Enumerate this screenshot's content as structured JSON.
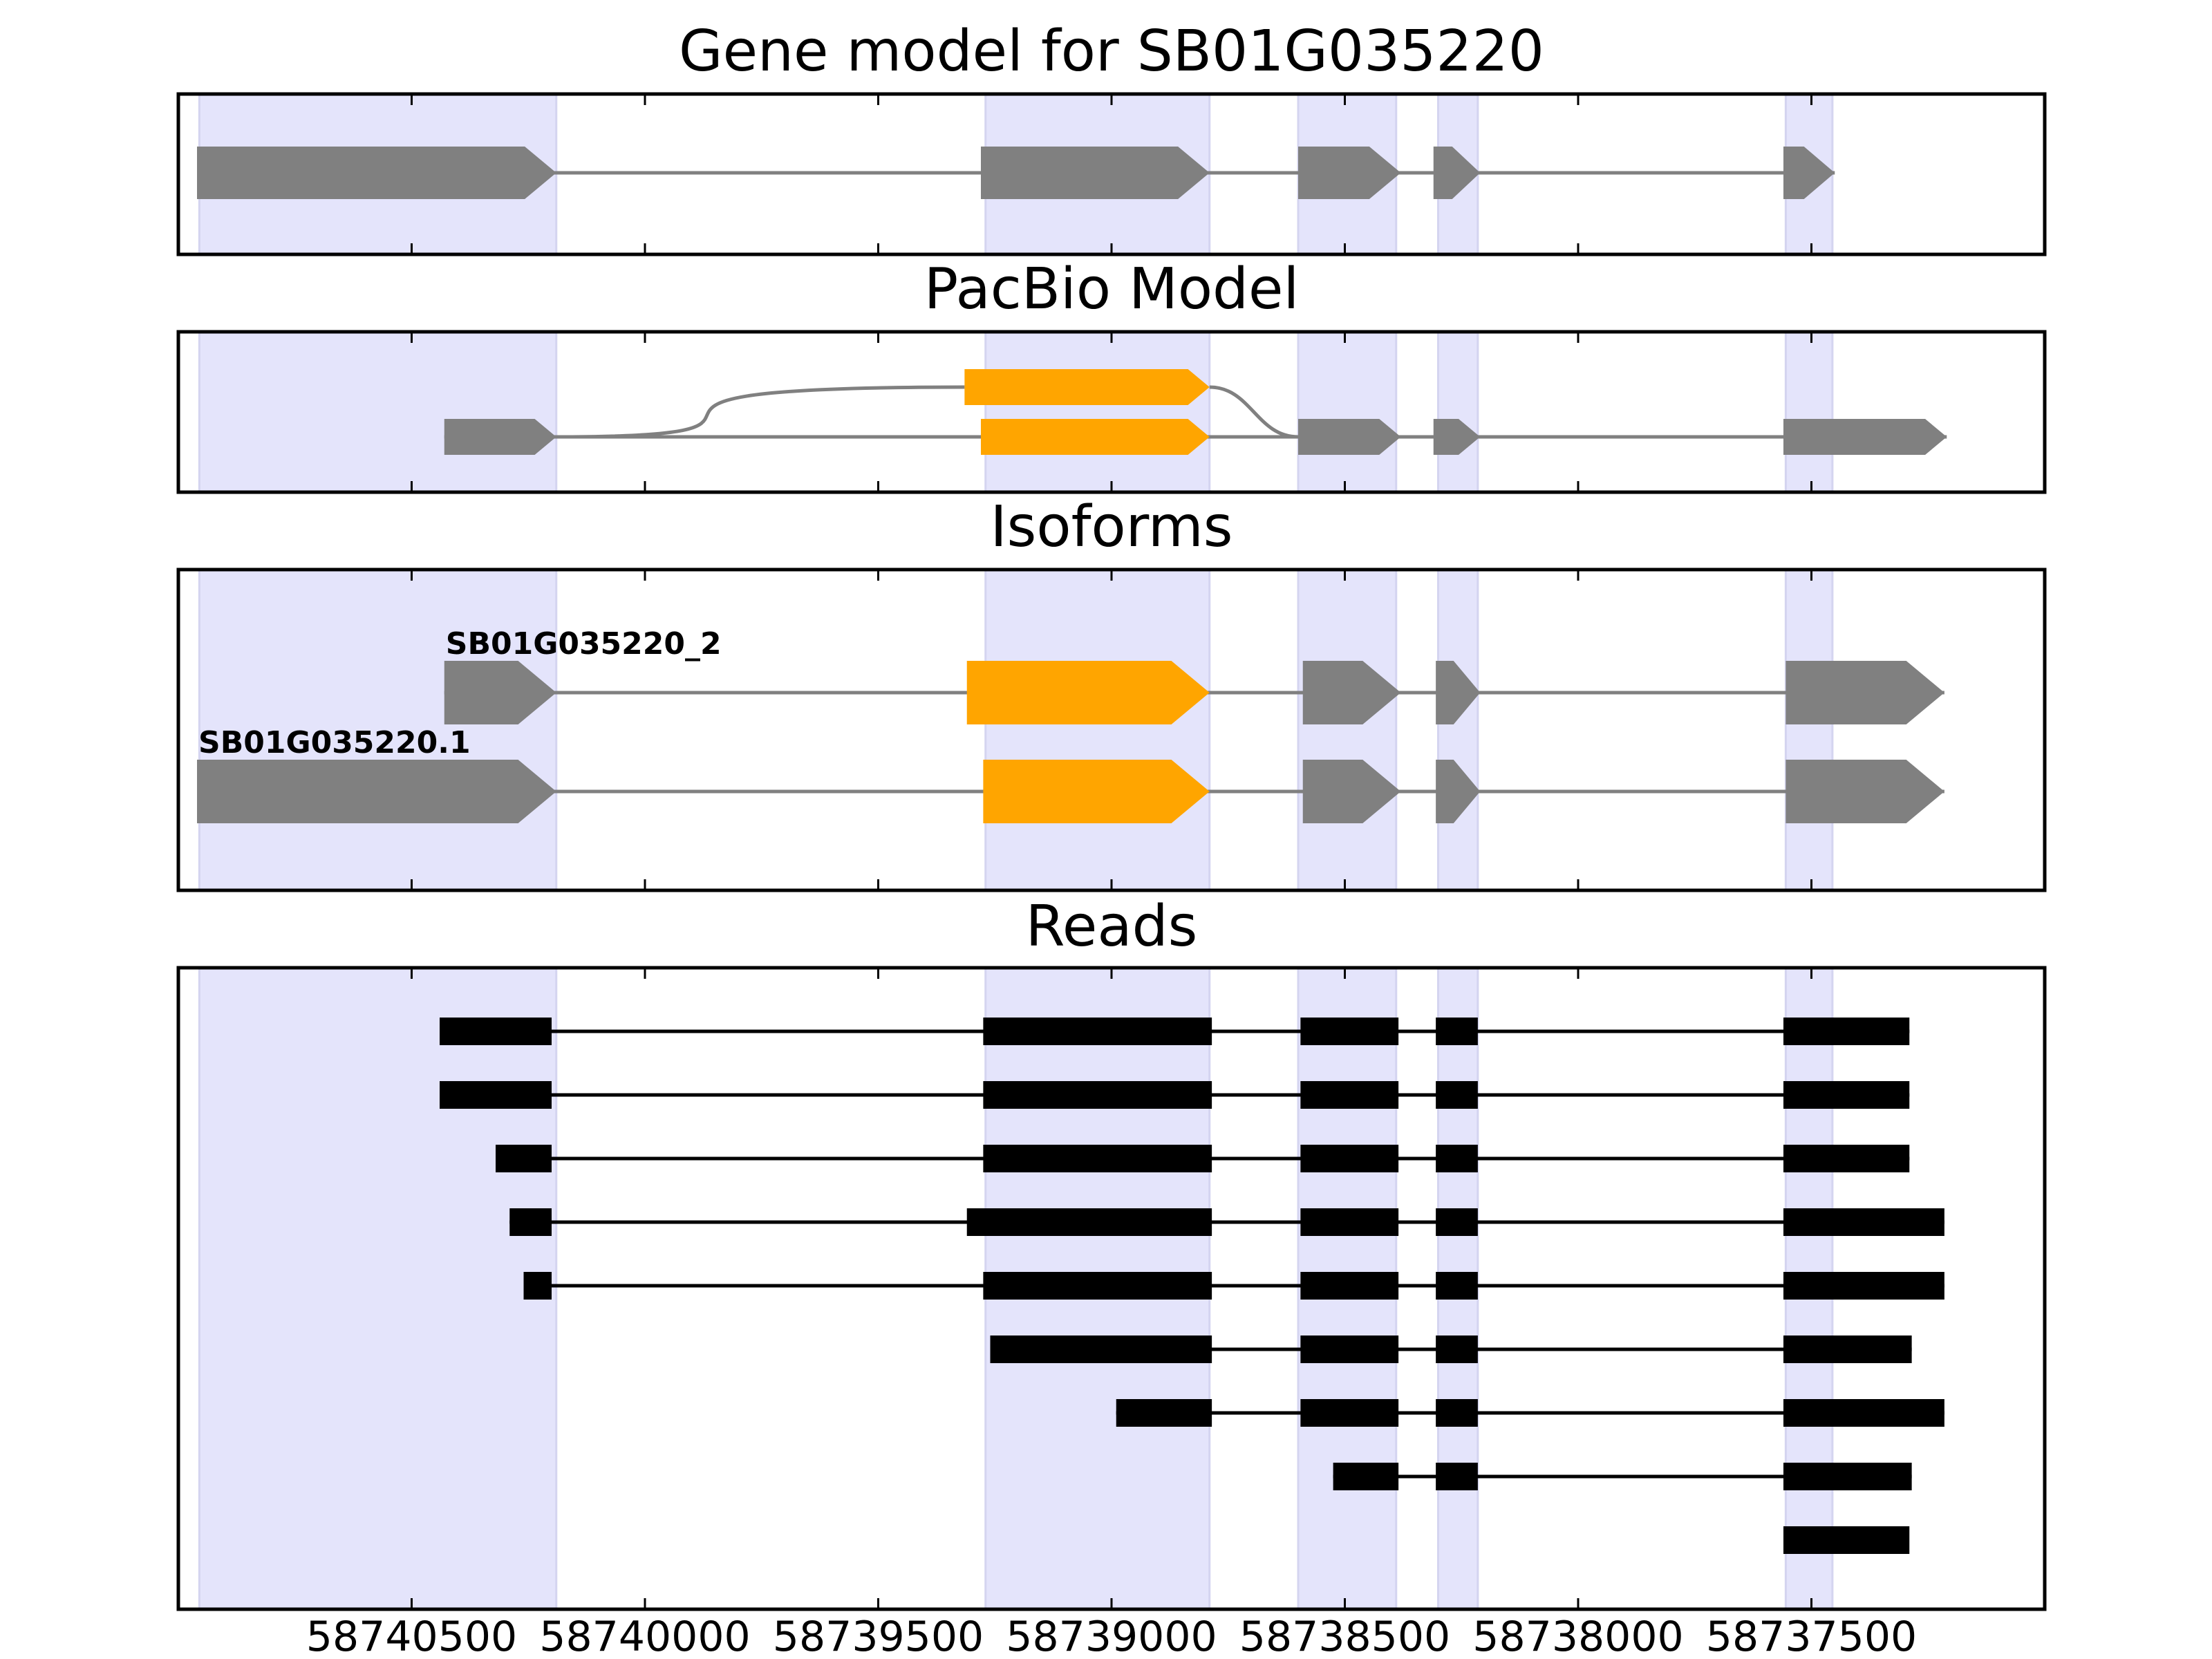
{
  "chart_data": {
    "type": "gene_model_tracks",
    "x_axis": {
      "xlim": [
        58741000,
        58737000
      ],
      "ticks": [
        58740500,
        58740000,
        58739500,
        58739000,
        58738500,
        58738000,
        58737500
      ],
      "tick_labels": [
        "58740500",
        "58740000",
        "58739500",
        "58739000",
        "58738500",
        "58738000",
        "58737500"
      ]
    },
    "exon_bands": [
      [
        58740955,
        58740190
      ],
      [
        58739270,
        58738790
      ],
      [
        58738600,
        58738390
      ],
      [
        58738300,
        58738215
      ],
      [
        58737555,
        58737455
      ]
    ],
    "colors": {
      "exon": "#808080",
      "alt_exon": "#ffa500",
      "band": "#e4e4fb",
      "read": "#000000"
    },
    "panels": [
      {
        "title": "Gene model for SB01G035220",
        "tracks": [
          {
            "label": "",
            "exons": [
              {
                "start": 58740960,
                "end": 58740190,
                "alt": false
              },
              {
                "start": 58739280,
                "end": 58738790,
                "alt": false
              },
              {
                "start": 58738600,
                "end": 58738380,
                "alt": false
              },
              {
                "start": 58738310,
                "end": 58738210,
                "alt": false
              },
              {
                "start": 58737560,
                "end": 58737450,
                "alt": false
              }
            ]
          }
        ]
      },
      {
        "title": "PacBio Model",
        "tracks": [
          {
            "label": "",
            "exons": [
              {
                "start": 58740430,
                "end": 58740190,
                "alt": false
              },
              {
                "start": 58739280,
                "end": 58738790,
                "alt": true
              },
              {
                "start": 58738600,
                "end": 58738380,
                "alt": false
              },
              {
                "start": 58738310,
                "end": 58738210,
                "alt": false
              },
              {
                "start": 58737560,
                "end": 58737210,
                "alt": false
              }
            ]
          },
          {
            "label": "",
            "exons": [
              {
                "start": 58739315,
                "end": 58738790,
                "alt": true
              }
            ]
          }
        ]
      },
      {
        "title": "Isoforms",
        "tracks": [
          {
            "label": "SB01G035220_2",
            "exons": [
              {
                "start": 58740430,
                "end": 58740190,
                "alt": false
              },
              {
                "start": 58739310,
                "end": 58738790,
                "alt": true
              },
              {
                "start": 58738590,
                "end": 58738380,
                "alt": false
              },
              {
                "start": 58738305,
                "end": 58738210,
                "alt": false
              },
              {
                "start": 58737555,
                "end": 58737215,
                "alt": false
              }
            ]
          },
          {
            "label": "SB01G035220.1",
            "exons": [
              {
                "start": 58740960,
                "end": 58740190,
                "alt": false
              },
              {
                "start": 58739275,
                "end": 58738790,
                "alt": true
              },
              {
                "start": 58738590,
                "end": 58738380,
                "alt": false
              },
              {
                "start": 58738305,
                "end": 58738210,
                "alt": false
              },
              {
                "start": 58737555,
                "end": 58737215,
                "alt": false
              }
            ]
          }
        ]
      },
      {
        "title": "Reads",
        "reads": [
          [
            [
              58740440,
              58740200
            ],
            [
              58739275,
              58738785
            ],
            [
              58738595,
              58738385
            ],
            [
              58738305,
              58738215
            ],
            [
              58737560,
              58737290
            ]
          ],
          [
            [
              58740440,
              58740200
            ],
            [
              58739275,
              58738785
            ],
            [
              58738595,
              58738385
            ],
            [
              58738305,
              58738215
            ],
            [
              58737560,
              58737290
            ]
          ],
          [
            [
              58740320,
              58740200
            ],
            [
              58739275,
              58738785
            ],
            [
              58738595,
              58738385
            ],
            [
              58738305,
              58738215
            ],
            [
              58737560,
              58737290
            ]
          ],
          [
            [
              58740290,
              58740200
            ],
            [
              58739310,
              58738785
            ],
            [
              58738595,
              58738385
            ],
            [
              58738305,
              58738215
            ],
            [
              58737560,
              58737215
            ]
          ],
          [
            [
              58740260,
              58740200
            ],
            [
              58739275,
              58738785
            ],
            [
              58738595,
              58738385
            ],
            [
              58738305,
              58738215
            ],
            [
              58737560,
              58737215
            ]
          ],
          [
            [
              58739260,
              58738785
            ],
            [
              58738595,
              58738385
            ],
            [
              58738305,
              58738215
            ],
            [
              58737560,
              58737285
            ]
          ],
          [
            [
              58738990,
              58738785
            ],
            [
              58738595,
              58738385
            ],
            [
              58738305,
              58738215
            ],
            [
              58737560,
              58737215
            ]
          ],
          [
            [
              58738525,
              58738385
            ],
            [
              58738305,
              58738215
            ],
            [
              58737560,
              58737285
            ]
          ],
          [
            [
              58737560,
              58737290
            ]
          ]
        ]
      }
    ]
  }
}
